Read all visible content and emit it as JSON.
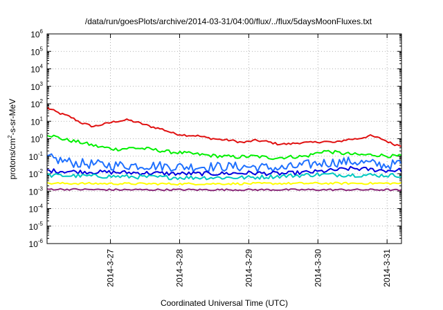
{
  "chart_data": {
    "type": "line",
    "title": "/data/run/goesPlots/archive/2014-03-31/04:00/flux/../flux/5daysMoonFluxes.txt",
    "xlabel": "Coordinated Universal Time (UTC)",
    "ylabel_parts": [
      "protons/cm",
      "2",
      "-s-sr-MeV"
    ],
    "y_scale": "log",
    "ylim": [
      1e-06,
      1000000.0
    ],
    "y_ticks": [
      {
        "base": "10",
        "exp": "6",
        "value": 1000000.0
      },
      {
        "base": "10",
        "exp": "5",
        "value": 100000.0
      },
      {
        "base": "10",
        "exp": "4",
        "value": 10000.0
      },
      {
        "base": "10",
        "exp": "3",
        "value": 1000.0
      },
      {
        "base": "10",
        "exp": "2",
        "value": 100.0
      },
      {
        "base": "10",
        "exp": "1",
        "value": 10.0
      },
      {
        "base": "10",
        "exp": "0",
        "value": 1.0
      },
      {
        "base": "10",
        "exp": "-1",
        "value": 0.1
      },
      {
        "base": "10",
        "exp": "-2",
        "value": 0.01
      },
      {
        "base": "10",
        "exp": "-3",
        "value": 0.001
      },
      {
        "base": "10",
        "exp": "-4",
        "value": 0.0001
      },
      {
        "base": "10",
        "exp": "-5",
        "value": 1e-05
      },
      {
        "base": "10",
        "exp": "-6",
        "value": 1e-06
      }
    ],
    "xlim": [
      "2014-03-26T02:00",
      "2014-03-31T05:00"
    ],
    "x_ticks": [
      {
        "label": "2014-3-27",
        "value": "2014-03-27T00:00"
      },
      {
        "label": "2014-3-28",
        "value": "2014-03-28T00:00"
      },
      {
        "label": "2014-3-29",
        "value": "2014-03-29T00:00"
      },
      {
        "label": "2014-3-30",
        "value": "2014-03-30T00:00"
      },
      {
        "label": "2014-3-31",
        "value": "2014-03-31T00:00"
      }
    ],
    "grid": true,
    "legend": "none",
    "series": [
      {
        "color": "#e01010",
        "noise": 0.06,
        "x": [
          "2014-03-26T02:00",
          "2014-03-26T06:00",
          "2014-03-26T10:00",
          "2014-03-26T14:00",
          "2014-03-26T18:00",
          "2014-03-26T22:00",
          "2014-03-27T02:00",
          "2014-03-27T06:00",
          "2014-03-27T10:00",
          "2014-03-27T14:00",
          "2014-03-27T18:00",
          "2014-03-27T22:00",
          "2014-03-28T02:00",
          "2014-03-28T06:00",
          "2014-03-28T10:00",
          "2014-03-28T14:00",
          "2014-03-28T18:00",
          "2014-03-28T22:00",
          "2014-03-29T02:00",
          "2014-03-29T06:00",
          "2014-03-29T10:00",
          "2014-03-29T14:00",
          "2014-03-29T18:00",
          "2014-03-29T22:00",
          "2014-03-30T02:00",
          "2014-03-30T06:00",
          "2014-03-30T10:00",
          "2014-03-30T14:00",
          "2014-03-30T18:00",
          "2014-03-30T22:00",
          "2014-03-31T02:00",
          "2014-03-31T05:00"
        ],
        "y": [
          60,
          30,
          18,
          8,
          5,
          7,
          10,
          12,
          8,
          5,
          3.5,
          2,
          1.6,
          1.5,
          1.1,
          0.9,
          0.8,
          0.6,
          0.8,
          0.7,
          0.5,
          0.5,
          0.6,
          0.6,
          0.7,
          0.6,
          0.9,
          1.0,
          1.5,
          1.0,
          0.5,
          0.4
        ]
      },
      {
        "color": "#00f000",
        "noise": 0.1,
        "x": [
          "2014-03-26T02:00",
          "2014-03-26T08:00",
          "2014-03-26T14:00",
          "2014-03-26T20:00",
          "2014-03-27T02:00",
          "2014-03-27T08:00",
          "2014-03-27T14:00",
          "2014-03-27T20:00",
          "2014-03-28T02:00",
          "2014-03-28T08:00",
          "2014-03-28T14:00",
          "2014-03-28T20:00",
          "2014-03-29T02:00",
          "2014-03-29T08:00",
          "2014-03-29T14:00",
          "2014-03-29T20:00",
          "2014-03-30T02:00",
          "2014-03-30T08:00",
          "2014-03-30T14:00",
          "2014-03-30T20:00",
          "2014-03-31T02:00",
          "2014-03-31T05:00"
        ],
        "y": [
          1.8,
          0.9,
          0.6,
          0.35,
          0.25,
          0.3,
          0.25,
          0.18,
          0.15,
          0.12,
          0.1,
          0.09,
          0.1,
          0.08,
          0.09,
          0.1,
          0.2,
          0.15,
          0.12,
          0.12,
          0.1,
          0.1
        ]
      },
      {
        "color": "#1e70ff",
        "noise": 0.28,
        "x": [
          "2014-03-26T02:00",
          "2014-03-26T12:00",
          "2014-03-27T00:00",
          "2014-03-27T12:00",
          "2014-03-28T00:00",
          "2014-03-28T12:00",
          "2014-03-29T00:00",
          "2014-03-29T12:00",
          "2014-03-30T00:00",
          "2014-03-30T12:00",
          "2014-03-31T00:00",
          "2014-03-31T05:00"
        ],
        "y": [
          0.08,
          0.04,
          0.03,
          0.03,
          0.025,
          0.025,
          0.025,
          0.02,
          0.04,
          0.05,
          0.03,
          0.04
        ]
      },
      {
        "color": "#0000e0",
        "noise": 0.12,
        "x": [
          "2014-03-26T02:00",
          "2014-03-26T12:00",
          "2014-03-27T00:00",
          "2014-03-27T12:00",
          "2014-03-28T00:00",
          "2014-03-28T12:00",
          "2014-03-29T00:00",
          "2014-03-29T12:00",
          "2014-03-30T00:00",
          "2014-03-30T12:00",
          "2014-03-31T00:00",
          "2014-03-31T05:00"
        ],
        "y": [
          0.015,
          0.013,
          0.012,
          0.011,
          0.01,
          0.01,
          0.011,
          0.01,
          0.013,
          0.02,
          0.015,
          0.016
        ]
      },
      {
        "color": "#00c8c0",
        "noise": 0.12,
        "x": [
          "2014-03-26T02:00",
          "2014-03-27T00:00",
          "2014-03-28T00:00",
          "2014-03-29T00:00",
          "2014-03-30T00:00",
          "2014-03-31T00:00",
          "2014-03-31T05:00"
        ],
        "y": [
          0.008,
          0.007,
          0.006,
          0.006,
          0.009,
          0.008,
          0.008
        ]
      },
      {
        "color": "#ffff00",
        "noise": 0.06,
        "x": [
          "2014-03-26T02:00",
          "2014-03-27T00:00",
          "2014-03-28T00:00",
          "2014-03-29T00:00",
          "2014-03-30T00:00",
          "2014-03-31T00:00",
          "2014-03-31T05:00"
        ],
        "y": [
          0.0028,
          0.0027,
          0.0026,
          0.0027,
          0.0028,
          0.0028,
          0.0028
        ]
      },
      {
        "color": "#8b2a7a",
        "noise": 0.05,
        "x": [
          "2014-03-26T02:00",
          "2014-03-27T00:00",
          "2014-03-28T00:00",
          "2014-03-29T00:00",
          "2014-03-30T00:00",
          "2014-03-31T00:00",
          "2014-03-31T05:00"
        ],
        "y": [
          0.0013,
          0.0012,
          0.0012,
          0.0012,
          0.0012,
          0.0012,
          0.0011
        ]
      }
    ]
  }
}
